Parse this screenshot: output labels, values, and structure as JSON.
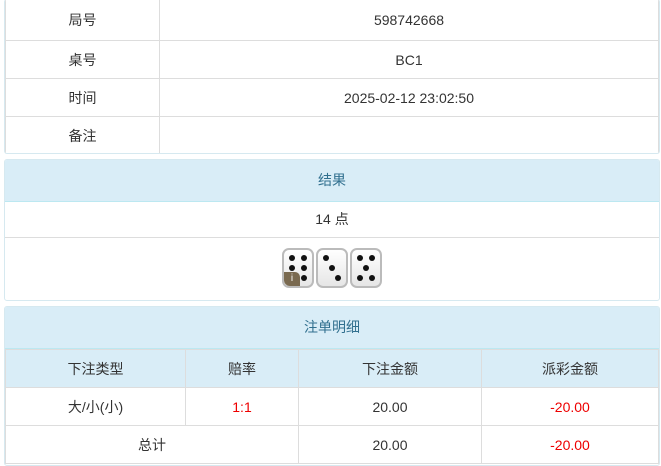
{
  "info": {
    "rows": [
      {
        "label": "局号",
        "value": "598742668"
      },
      {
        "label": "桌号",
        "value": "BC1"
      },
      {
        "label": "时间",
        "value": "2025-02-12 23:02:50"
      },
      {
        "label": "备注",
        "value": ""
      }
    ]
  },
  "result": {
    "title": "结果",
    "points": "14 点",
    "dice": [
      6,
      3,
      5
    ],
    "info_icon": "i"
  },
  "bets": {
    "title": "注单明细",
    "headers": [
      "下注类型",
      "赔率",
      "下注金额",
      "派彩金额"
    ],
    "rows": [
      {
        "type": "大/小(小)",
        "odds": "1:1",
        "amount": "20.00",
        "payout": "-20.00"
      }
    ],
    "total": {
      "label": "总计",
      "amount": "20.00",
      "payout": "-20.00"
    }
  },
  "colors": {
    "header_bg": "#d9edf7",
    "negative": "#ee0000"
  }
}
